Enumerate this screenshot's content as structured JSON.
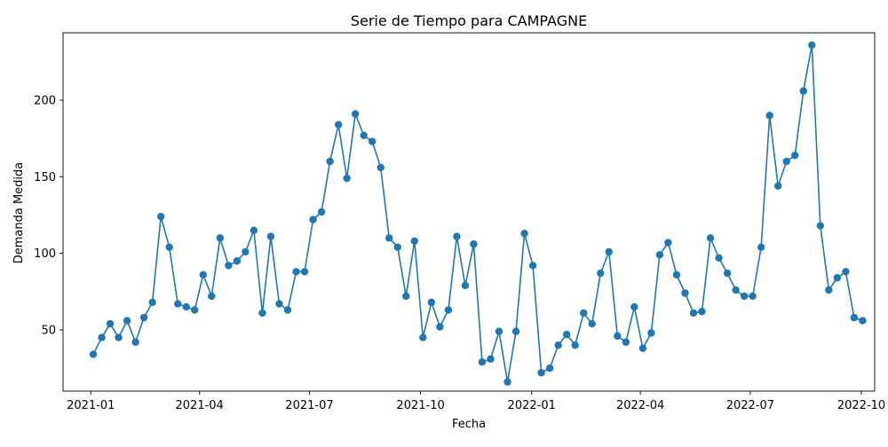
{
  "chart_data": {
    "type": "line",
    "title": "Serie de Tiempo para CAMPAGNE",
    "xlabel": "Fecha",
    "ylabel": "Demanda Medida",
    "x_ticks": [
      "2021-01",
      "2021-04",
      "2021-07",
      "2021-10",
      "2022-01",
      "2022-04",
      "2022-07",
      "2022-10"
    ],
    "y_ticks": [
      50,
      100,
      150,
      200
    ],
    "xlim": [
      "2020-12-09",
      "2022-10-12"
    ],
    "ylim": [
      10,
      244
    ],
    "grid": false,
    "color": "#1f77b4",
    "x": [
      "2021-01-03",
      "2021-01-10",
      "2021-01-17",
      "2021-01-24",
      "2021-01-31",
      "2021-02-07",
      "2021-02-14",
      "2021-02-21",
      "2021-02-28",
      "2021-03-07",
      "2021-03-14",
      "2021-03-21",
      "2021-03-28",
      "2021-04-04",
      "2021-04-11",
      "2021-04-18",
      "2021-04-25",
      "2021-05-02",
      "2021-05-09",
      "2021-05-16",
      "2021-05-23",
      "2021-05-30",
      "2021-06-06",
      "2021-06-13",
      "2021-06-20",
      "2021-06-27",
      "2021-07-04",
      "2021-07-11",
      "2021-07-18",
      "2021-07-25",
      "2021-08-01",
      "2021-08-08",
      "2021-08-15",
      "2021-08-22",
      "2021-08-29",
      "2021-09-05",
      "2021-09-12",
      "2021-09-19",
      "2021-09-26",
      "2021-10-03",
      "2021-10-10",
      "2021-10-17",
      "2021-10-24",
      "2021-10-31",
      "2021-11-07",
      "2021-11-14",
      "2021-11-21",
      "2021-11-28",
      "2021-12-05",
      "2021-12-12",
      "2021-12-19",
      "2021-12-26",
      "2022-01-02",
      "2022-01-09",
      "2022-01-16",
      "2022-01-23",
      "2022-01-30",
      "2022-02-06",
      "2022-02-13",
      "2022-02-20",
      "2022-02-27",
      "2022-03-06",
      "2022-03-13",
      "2022-03-20",
      "2022-03-27",
      "2022-04-03",
      "2022-04-10",
      "2022-04-17",
      "2022-04-24",
      "2022-05-01",
      "2022-05-08",
      "2022-05-15",
      "2022-05-22",
      "2022-05-29",
      "2022-06-05",
      "2022-06-12",
      "2022-06-19",
      "2022-06-26",
      "2022-07-03",
      "2022-07-10",
      "2022-07-17",
      "2022-07-24",
      "2022-07-31",
      "2022-08-07",
      "2022-08-14",
      "2022-08-21",
      "2022-08-28",
      "2022-09-04",
      "2022-09-11",
      "2022-09-18",
      "2022-09-25",
      "2022-10-02"
    ],
    "values": [
      34,
      45,
      54,
      45,
      56,
      42,
      58,
      68,
      124,
      104,
      67,
      65,
      63,
      86,
      72,
      110,
      92,
      95,
      101,
      115,
      61,
      111,
      67,
      63,
      88,
      88,
      122,
      127,
      160,
      184,
      149,
      191,
      177,
      173,
      156,
      110,
      104,
      72,
      108,
      45,
      68,
      52,
      63,
      111,
      79,
      106,
      29,
      31,
      49,
      16,
      49,
      113,
      92,
      22,
      25,
      40,
      47,
      40,
      61,
      54,
      87,
      101,
      46,
      42,
      65,
      38,
      48,
      99,
      107,
      86,
      74,
      61,
      62,
      110,
      97,
      87,
      76,
      72,
      72,
      104,
      190,
      144,
      160,
      164,
      206,
      236,
      118,
      76,
      84,
      88,
      58,
      56
    ]
  }
}
